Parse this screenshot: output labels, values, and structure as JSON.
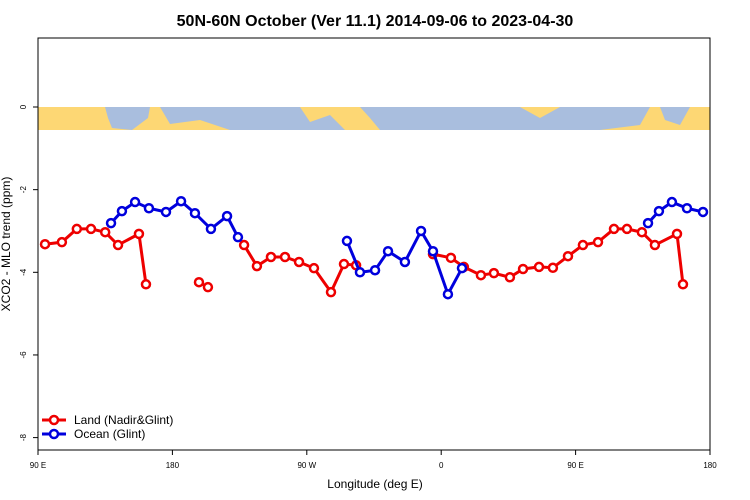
{
  "chart_data": {
    "type": "line",
    "title": "50N-60N October (Ver 11.1)   2014-09-06 to 2023-04-30",
    "xlabel": "Longitude (deg E)",
    "ylabel": "XCO2 - MLO trend (ppm)",
    "xlim": [
      90,
      540
    ],
    "ylim": [
      -8.3,
      1.67
    ],
    "xticks": [
      {
        "value": 90,
        "label": "90 E"
      },
      180,
      {
        "value": 270,
        "label": "90 W"
      },
      {
        "value": 360,
        "label": "0"
      },
      {
        "value": 450,
        "label": "90 E"
      },
      {
        "value": 540,
        "label": "180"
      }
    ],
    "yticks": [
      0,
      -2,
      -4,
      -6,
      -8
    ],
    "legend": "lower left",
    "series": [
      {
        "name": "Land (Nadir&Glint)",
        "color": "#ee0000",
        "x": [
          94.7,
          106,
          116,
          125.5,
          135,
          143.6,
          157.6,
          162.3,
          null,
          197.8,
          203.8,
          null,
          228,
          236.6,
          246,
          255.4,
          264.8,
          274.8,
          286.2,
          294.9,
          303,
          null,
          354.5,
          366.5,
          375.2,
          386.6,
          395.3,
          406,
          414.8,
          425.5,
          434.8,
          444.9,
          454.9,
          465,
          475.7,
          484.4,
          494.4,
          503.1,
          517.9,
          521.9
        ],
        "values": [
          -3.32,
          -3.27,
          -2.95,
          -2.95,
          -3.03,
          -3.34,
          -3.07,
          -4.29,
          null,
          -4.24,
          -4.36,
          null,
          -3.34,
          -3.85,
          -3.63,
          -3.63,
          -3.75,
          -3.9,
          -4.48,
          -3.8,
          -3.83,
          null,
          -3.56,
          -3.65,
          -3.87,
          -4.07,
          -4.02,
          -4.12,
          -3.92,
          -3.87,
          -3.89,
          -3.61,
          -3.34,
          -3.27,
          -2.95,
          -2.95,
          -3.03,
          -3.34,
          -3.07,
          -4.29
        ]
      },
      {
        "name": "Ocean (Glint)",
        "color": "#0000dd",
        "x": [
          138.9,
          146.2,
          155,
          164.3,
          175.7,
          185.8,
          195.1,
          205.8,
          216.6,
          223.9,
          null,
          296.9,
          305.6,
          315.7,
          324.4,
          335.7,
          346.5,
          354.5,
          364.5,
          373.9,
          null,
          498.5,
          505.8,
          514.5,
          524.6,
          535.3
        ],
        "values": [
          -2.81,
          -2.52,
          -2.3,
          -2.45,
          -2.54,
          -2.28,
          -2.57,
          -2.95,
          -2.64,
          -3.15,
          null,
          -3.24,
          -4.0,
          -3.95,
          -3.49,
          -3.75,
          -3.0,
          -3.49,
          -4.53,
          -3.9,
          null,
          -2.81,
          -2.52,
          -2.3,
          -2.45,
          -2.54
        ]
      }
    ]
  }
}
